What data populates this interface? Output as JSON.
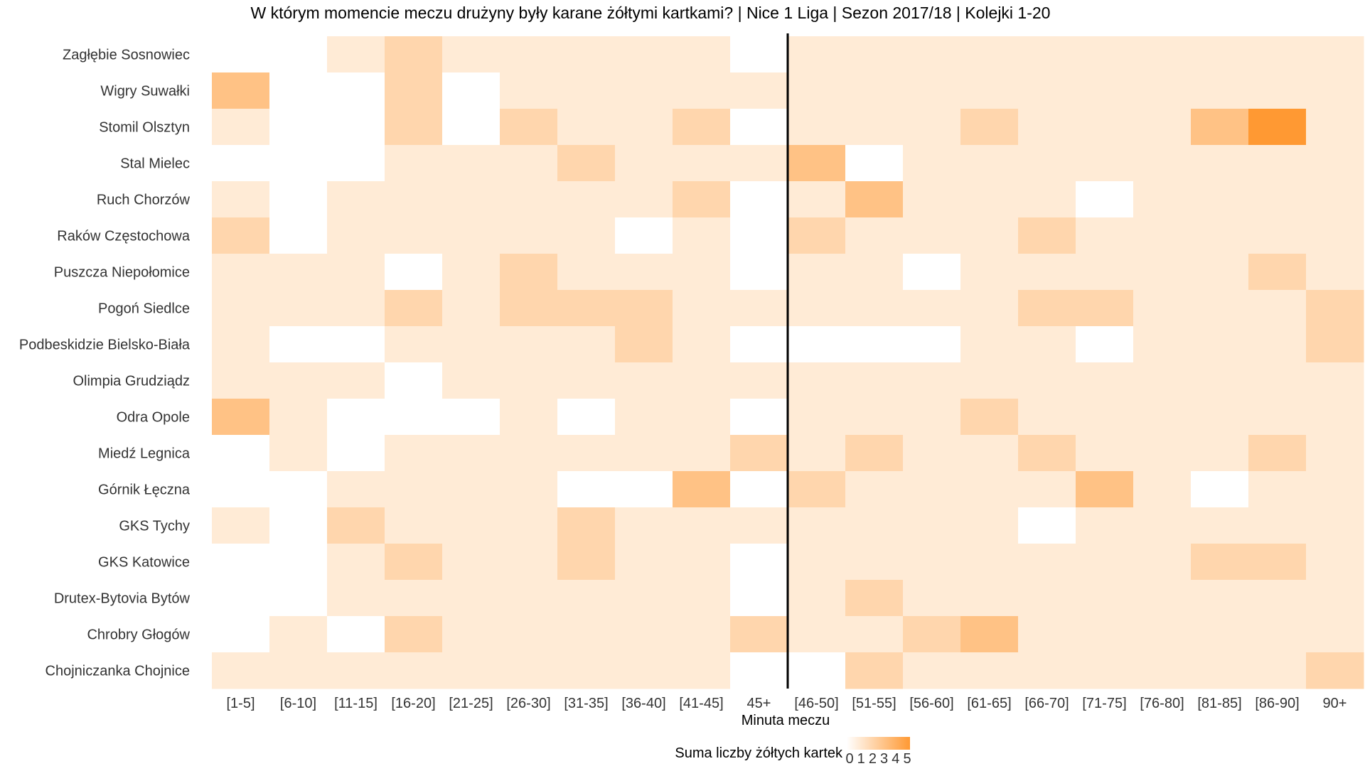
{
  "chart_data": {
    "type": "heatmap",
    "title": "W którym momencie meczu drużyny były karane żółtymi kartkami? | Nice 1 Liga | Sezon 2017/18 | Kolejki 1-20",
    "xlabel": "Minuta meczu",
    "ylabel": "",
    "x_categories": [
      "[1-5]",
      "[6-10]",
      "[11-15]",
      "[16-20]",
      "[21-25]",
      "[26-30]",
      "[31-35]",
      "[36-40]",
      "[41-45]",
      "45+",
      "[46-50]",
      "[51-55]",
      "[56-60]",
      "[61-65]",
      "[66-70]",
      "[71-75]",
      "[76-80]",
      "[81-85]",
      "[86-90]",
      "90+"
    ],
    "y_categories": [
      "Zagłębie Sosnowiec",
      "Wigry Suwałki",
      "Stomil Olsztyn",
      "Stal Mielec",
      "Ruch Chorzów",
      "Raków Częstochowa",
      "Puszcza Niepołomice",
      "Pogoń Siedlce",
      "Podbeskidzie Bielsko-Biała",
      "Olimpia Grudziądz",
      "Odra Opole",
      "Miedź Legnica",
      "Górnik Łęczna",
      "GKS Tychy",
      "GKS Katowice",
      "Drutex-Bytovia Bytów",
      "Chrobry Głogów",
      "Chojniczanka Chojnice"
    ],
    "values": [
      [
        0,
        0,
        1,
        2,
        1,
        1,
        1,
        1,
        1,
        0,
        1,
        1,
        1,
        1,
        1,
        1,
        1,
        1,
        1,
        1
      ],
      [
        3,
        0,
        0,
        2,
        0,
        1,
        1,
        1,
        1,
        1,
        1,
        1,
        1,
        1,
        1,
        1,
        1,
        1,
        1,
        1
      ],
      [
        1,
        0,
        0,
        2,
        0,
        2,
        1,
        1,
        2,
        0,
        1,
        1,
        1,
        2,
        1,
        1,
        1,
        3,
        5,
        1
      ],
      [
        0,
        0,
        0,
        1,
        1,
        1,
        2,
        1,
        1,
        1,
        3,
        0,
        1,
        1,
        1,
        1,
        1,
        1,
        1,
        1
      ],
      [
        1,
        0,
        1,
        1,
        1,
        1,
        1,
        1,
        2,
        0,
        1,
        3,
        1,
        1,
        1,
        0,
        1,
        1,
        1,
        1
      ],
      [
        2,
        0,
        1,
        1,
        1,
        1,
        1,
        0,
        1,
        0,
        2,
        1,
        1,
        1,
        2,
        1,
        1,
        1,
        1,
        1
      ],
      [
        1,
        1,
        1,
        0,
        1,
        2,
        1,
        1,
        1,
        0,
        1,
        1,
        0,
        1,
        1,
        1,
        1,
        1,
        2,
        1
      ],
      [
        1,
        1,
        1,
        2,
        1,
        2,
        2,
        2,
        1,
        1,
        1,
        1,
        1,
        1,
        2,
        2,
        1,
        1,
        1,
        2
      ],
      [
        1,
        0,
        0,
        1,
        1,
        1,
        1,
        2,
        1,
        0,
        0,
        0,
        0,
        1,
        1,
        0,
        1,
        1,
        1,
        2
      ],
      [
        1,
        1,
        1,
        0,
        1,
        1,
        1,
        1,
        1,
        1,
        1,
        1,
        1,
        1,
        1,
        1,
        1,
        1,
        1,
        1
      ],
      [
        3,
        1,
        0,
        0,
        0,
        1,
        0,
        1,
        1,
        0,
        1,
        1,
        1,
        2,
        1,
        1,
        1,
        1,
        1,
        1
      ],
      [
        0,
        1,
        0,
        1,
        1,
        1,
        1,
        1,
        1,
        2,
        1,
        2,
        1,
        1,
        2,
        1,
        1,
        1,
        2,
        1
      ],
      [
        0,
        0,
        1,
        1,
        1,
        1,
        0,
        0,
        3,
        0,
        2,
        1,
        1,
        1,
        1,
        3,
        1,
        0,
        1,
        1
      ],
      [
        1,
        0,
        2,
        1,
        1,
        1,
        2,
        1,
        1,
        1,
        1,
        1,
        1,
        1,
        0,
        1,
        1,
        1,
        1,
        1
      ],
      [
        0,
        0,
        1,
        2,
        1,
        1,
        2,
        1,
        1,
        0,
        1,
        1,
        1,
        1,
        1,
        1,
        1,
        2,
        2,
        1
      ],
      [
        0,
        0,
        1,
        1,
        1,
        1,
        1,
        1,
        1,
        0,
        1,
        2,
        1,
        1,
        1,
        1,
        1,
        1,
        1,
        1
      ],
      [
        0,
        1,
        0,
        2,
        1,
        1,
        1,
        1,
        1,
        2,
        1,
        1,
        2,
        3,
        1,
        1,
        1,
        1,
        1,
        1
      ],
      [
        1,
        1,
        1,
        1,
        1,
        1,
        1,
        1,
        1,
        0,
        0,
        2,
        1,
        1,
        1,
        1,
        1,
        1,
        1,
        2
      ]
    ],
    "halftime_line_after": "45+",
    "legend": {
      "title": "Suma liczby żółtych kartek",
      "ticks": [
        "0",
        "1",
        "2",
        "3",
        "4",
        "5"
      ],
      "range": [
        0,
        5
      ],
      "placement": "bottom"
    },
    "colors": {
      "low": "#ffffff",
      "high": "#ff9933",
      "line": "#000000",
      "text": "#333333",
      "title": "#000000"
    },
    "grid": false
  }
}
